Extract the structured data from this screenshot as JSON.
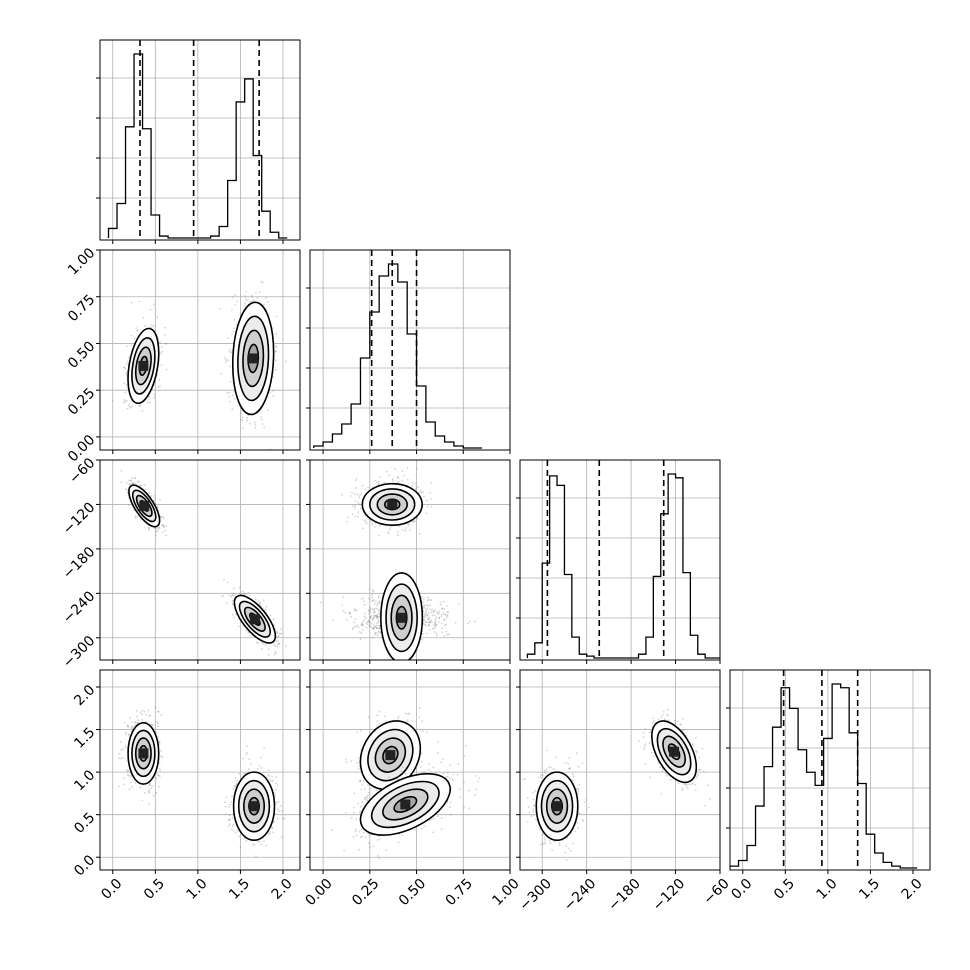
{
  "chart_data": {
    "type": "corner",
    "grid": true,
    "colors": {
      "axes": "#000000",
      "grid": "#b0b0b0",
      "points": "#808080",
      "hist": "#000000"
    },
    "variables": [
      {
        "ticks": [
          "0.0",
          "0.5",
          "1.0",
          "1.5",
          "2.0"
        ],
        "tick_values": [
          0.0,
          0.5,
          1.0,
          1.5,
          2.0
        ],
        "range": [
          -0.15,
          2.2
        ],
        "quantiles": [
          0.32,
          0.95,
          1.72
        ]
      },
      {
        "ticks": [
          "0.00",
          "0.25",
          "0.50",
          "0.75",
          "1.00"
        ],
        "tick_values": [
          0.0,
          0.25,
          0.5,
          0.75,
          1.0
        ],
        "range": [
          -0.07,
          1.0
        ],
        "quantiles": [
          0.26,
          0.37,
          0.5
        ]
      },
      {
        "ticks": [
          "−300",
          "−240",
          "−180",
          "−120",
          "−60"
        ],
        "tick_values": [
          -300,
          -240,
          -180,
          -120,
          -60
        ],
        "range": [
          -330,
          -60
        ],
        "quantiles": [
          -293,
          -223,
          -136
        ]
      },
      {
        "ticks": [
          "0.0",
          "0.5",
          "1.0",
          "1.5",
          "2.0"
        ],
        "tick_values": [
          0.0,
          0.5,
          1.0,
          1.5,
          2.0
        ],
        "range": [
          -0.15,
          2.2
        ],
        "quantiles": [
          0.48,
          0.93,
          1.35
        ]
      }
    ],
    "histograms": [
      {
        "var": 0,
        "edges": [
          -0.05,
          0.05,
          0.15,
          0.25,
          0.35,
          0.45,
          0.55,
          0.65,
          0.75,
          0.85,
          0.95,
          1.05,
          1.15,
          1.25,
          1.35,
          1.45,
          1.55,
          1.65,
          1.75,
          1.85,
          1.95,
          2.05
        ],
        "counts": [
          0.05,
          0.18,
          0.58,
          0.96,
          0.57,
          0.12,
          0.01,
          0,
          0,
          0,
          0,
          0,
          0.01,
          0.06,
          0.3,
          0.71,
          0.83,
          0.43,
          0.14,
          0.03,
          0
        ]
      },
      {
        "var": 1,
        "edges": [
          -0.05,
          0,
          0.05,
          0.1,
          0.15,
          0.2,
          0.25,
          0.3,
          0.35,
          0.4,
          0.45,
          0.5,
          0.55,
          0.6,
          0.65,
          0.7,
          0.75,
          0.8,
          0.85
        ],
        "counts": [
          0.01,
          0.03,
          0.07,
          0.12,
          0.22,
          0.45,
          0.68,
          0.86,
          0.92,
          0.83,
          0.57,
          0.31,
          0.13,
          0.06,
          0.03,
          0.01,
          0,
          0
        ]
      },
      {
        "var": 2,
        "edges": [
          -320,
          -310,
          -300,
          -290,
          -280,
          -270,
          -260,
          -250,
          -240,
          -230,
          -220,
          -210,
          -200,
          -190,
          -180,
          -170,
          -160,
          -150,
          -140,
          -130,
          -120,
          -110,
          -100,
          -90,
          -80,
          -70,
          -60
        ],
        "counts": [
          0.02,
          0.08,
          0.5,
          0.96,
          0.91,
          0.44,
          0.11,
          0.02,
          0.01,
          0,
          0,
          0,
          0,
          0,
          0,
          0.02,
          0.11,
          0.43,
          0.76,
          0.97,
          0.95,
          0.45,
          0.12,
          0.02,
          0,
          0
        ]
      },
      {
        "var": 3,
        "edges": [
          -0.15,
          -0.05,
          0.05,
          0.15,
          0.25,
          0.35,
          0.45,
          0.55,
          0.65,
          0.75,
          0.85,
          0.95,
          1.05,
          1.15,
          1.25,
          1.35,
          1.45,
          1.55,
          1.65,
          1.75,
          1.85,
          1.95,
          2.05
        ],
        "counts": [
          0.01,
          0.04,
          0.12,
          0.33,
          0.54,
          0.75,
          0.96,
          0.85,
          0.63,
          0.51,
          0.44,
          0.69,
          0.98,
          0.96,
          0.72,
          0.45,
          0.18,
          0.08,
          0.03,
          0.01,
          0,
          0
        ]
      }
    ],
    "pairs": [
      {
        "x": 0,
        "y": 1,
        "modes": [
          {
            "cx": 0.36,
            "cy": 0.38,
            "sx": 0.09,
            "sy": 0.1,
            "rho": 0.35,
            "w": 0.5
          },
          {
            "cx": 1.65,
            "cy": 0.42,
            "sx": 0.12,
            "sy": 0.15,
            "rho": 0.1,
            "w": 0.5
          }
        ]
      },
      {
        "x": 0,
        "y": 2,
        "modes": [
          {
            "cx": 0.37,
            "cy": -122,
            "sx": 0.09,
            "sy": 14,
            "rho": -0.7,
            "w": 0.5
          },
          {
            "cx": 1.67,
            "cy": -275,
            "sx": 0.12,
            "sy": 16,
            "rho": -0.7,
            "w": 0.5
          }
        ]
      },
      {
        "x": 1,
        "y": 2,
        "modes": [
          {
            "cx": 0.37,
            "cy": -120,
            "sx": 0.08,
            "sy": 14,
            "rho": 0.0,
            "w": 0.5
          },
          {
            "cx": 0.42,
            "cy": -273,
            "sx": 0.12,
            "sy": 14,
            "rho": 0.0,
            "w": 0.5
          }
        ]
      },
      {
        "x": 0,
        "y": 3,
        "modes": [
          {
            "cx": 0.36,
            "cy": 1.22,
            "sx": 0.09,
            "sy": 0.18,
            "rho": 0.0,
            "w": 0.5
          },
          {
            "cx": 1.66,
            "cy": 0.6,
            "sx": 0.12,
            "sy": 0.2,
            "rho": 0.0,
            "w": 0.5
          }
        ]
      },
      {
        "x": 1,
        "y": 3,
        "modes": [
          {
            "cx": 0.36,
            "cy": 1.2,
            "sx": 0.08,
            "sy": 0.2,
            "rho": 0.2,
            "w": 0.5
          },
          {
            "cx": 0.44,
            "cy": 0.62,
            "sx": 0.12,
            "sy": 0.18,
            "rho": 0.5,
            "w": 0.5
          }
        ]
      },
      {
        "x": 2,
        "y": 3,
        "modes": [
          {
            "cx": -280,
            "cy": 0.6,
            "sx": 14,
            "sy": 0.2,
            "rho": 0.0,
            "w": 0.5
          },
          {
            "cx": -122,
            "cy": 1.24,
            "sx": 15,
            "sy": 0.18,
            "rho": -0.5,
            "w": 0.5
          }
        ]
      }
    ]
  }
}
